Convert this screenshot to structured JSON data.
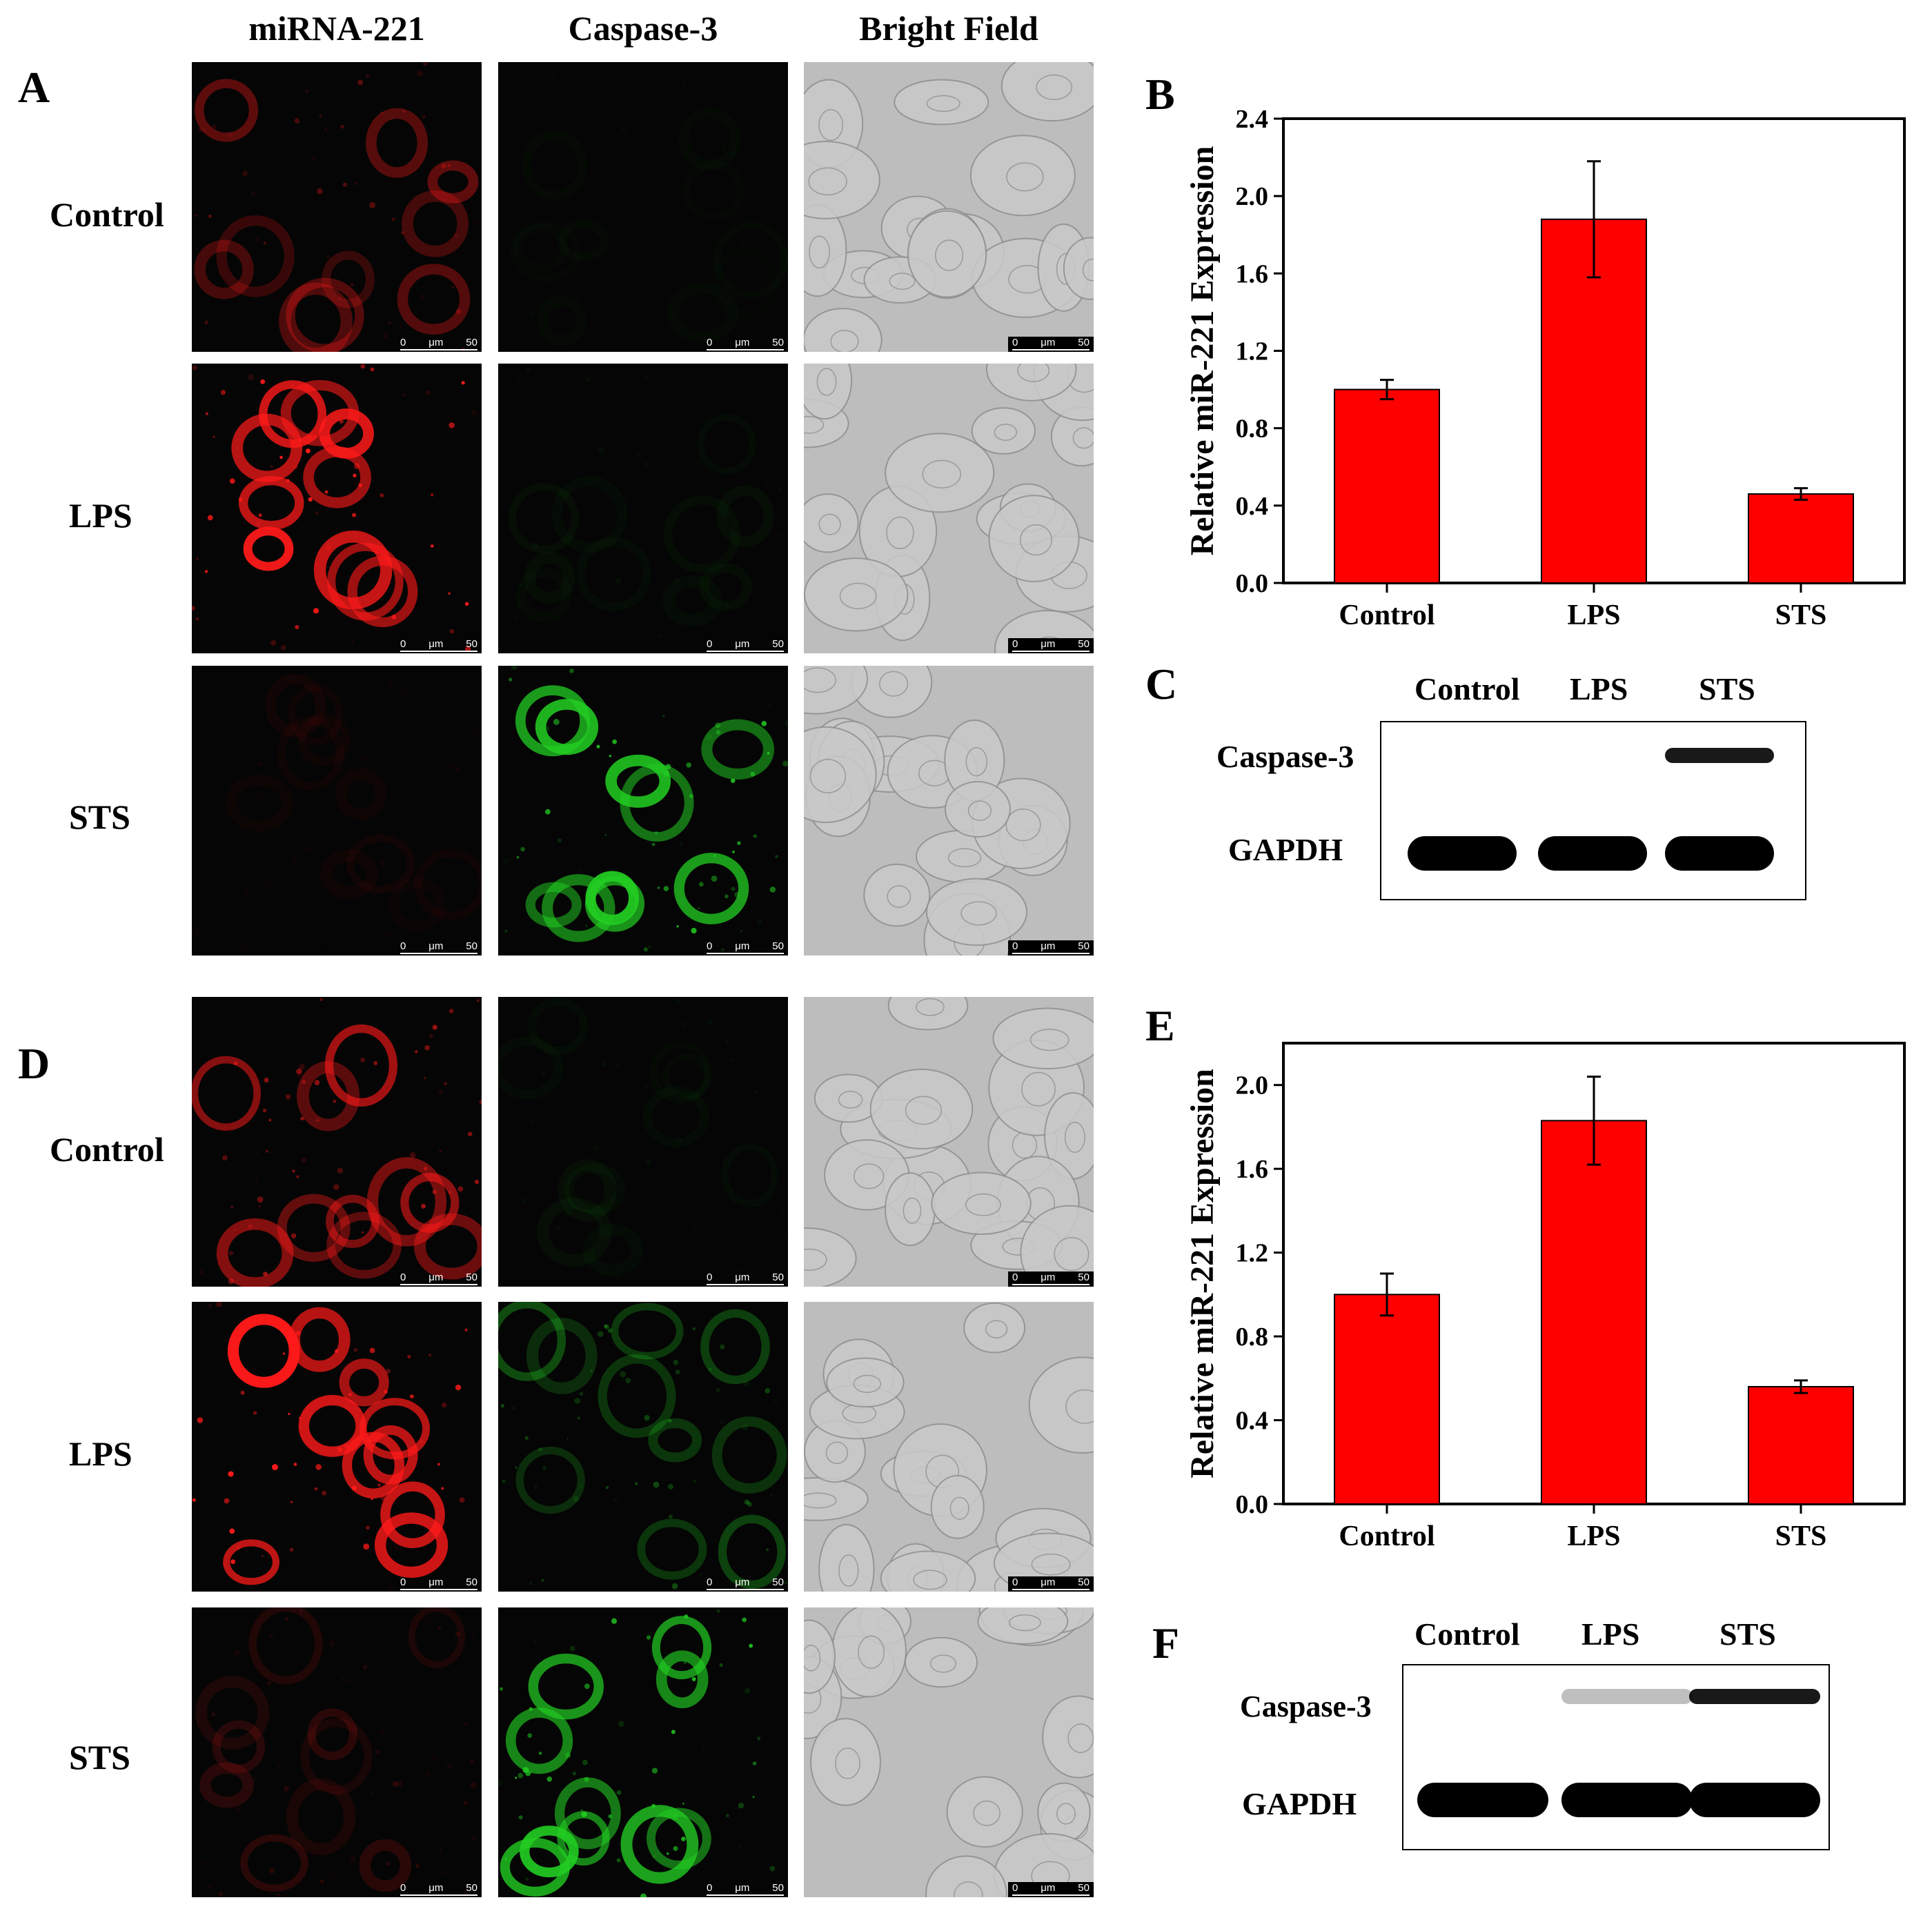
{
  "columns": [
    "miRNA-221",
    "Caspase-3",
    "Bright Field"
  ],
  "rows": [
    "Control",
    "LPS",
    "STS"
  ],
  "scale_bar": {
    "start": "0",
    "unit": "μm",
    "end": "50"
  },
  "panel_labels": {
    "A": "A",
    "B": "B",
    "C": "C",
    "D": "D",
    "E": "E",
    "F": "F"
  },
  "colors": {
    "bar": "#ff0000",
    "fluor_red": "#ff1a1a",
    "fluor_green": "#22cc22"
  },
  "microscopy": {
    "A": {
      "miRNA-221": [
        0.35,
        1.0,
        0.05
      ],
      "Caspase-3": [
        0.03,
        0.05,
        0.9
      ]
    },
    "D": {
      "miRNA-221": [
        0.6,
        1.0,
        0.15
      ],
      "Caspase-3": [
        0.05,
        0.35,
        0.9
      ]
    }
  },
  "western": {
    "C": {
      "lanes": [
        "Control",
        "LPS",
        "STS"
      ],
      "proteins": [
        "Caspase-3",
        "GAPDH"
      ],
      "intensity": {
        "Caspase-3": [
          0,
          0,
          0.9
        ],
        "GAPDH": [
          1,
          1,
          1
        ]
      }
    },
    "F": {
      "lanes": [
        "Control",
        "LPS",
        "STS"
      ],
      "proteins": [
        "Caspase-3",
        "GAPDH"
      ],
      "intensity": {
        "Caspase-3": [
          0,
          0.25,
          0.9
        ],
        "GAPDH": [
          1,
          1,
          1
        ]
      }
    }
  },
  "chart_data": [
    {
      "type": "bar",
      "panel": "B",
      "categories": [
        "Control",
        "LPS",
        "STS"
      ],
      "values": [
        1.0,
        1.88,
        0.46
      ],
      "errors": [
        0.05,
        0.3,
        0.03
      ],
      "ylabel": "Relative miR-221 Expression",
      "ylim": [
        0,
        2.4
      ],
      "yticks": [
        "0.0",
        "0.4",
        "0.8",
        "1.2",
        "1.6",
        "2.0",
        "2.4"
      ],
      "grid": false
    },
    {
      "type": "bar",
      "panel": "E",
      "categories": [
        "Control",
        "LPS",
        "STS"
      ],
      "values": [
        1.0,
        1.83,
        0.56
      ],
      "errors": [
        0.1,
        0.21,
        0.03
      ],
      "ylabel": "Relative miR-221 Expression",
      "ylim": [
        0,
        2.2
      ],
      "yticks": [
        "0.0",
        "0.4",
        "0.8",
        "1.2",
        "1.6",
        "2.0"
      ],
      "grid": false
    }
  ]
}
